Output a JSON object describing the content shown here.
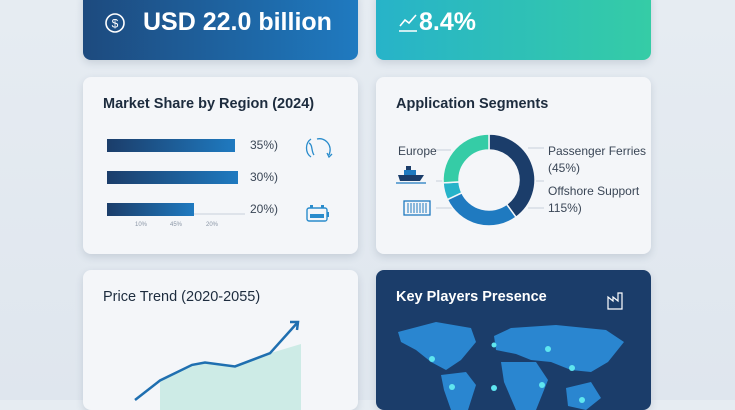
{
  "kpis": [
    {
      "value": "USD 22.0 billion",
      "icon": "dollar-circle-icon"
    },
    {
      "value": "8.4%",
      "icon": "trend-up-icon"
    }
  ],
  "colors": {
    "navy": "#1b3d6a",
    "blue": "#1f7ac0",
    "teal": "#27b3c9",
    "green": "#35cca6",
    "light_teal": "#cdebe6"
  },
  "chart_data": [
    {
      "type": "bar",
      "title": "Market Share by Region (2024)",
      "orientation": "horizontal",
      "values": [
        35,
        30,
        20
      ],
      "data_labels": [
        "35%)",
        "30%)",
        "20%)"
      ],
      "tick_labels": [
        "10%",
        "45%",
        "20%"
      ],
      "icons": [
        "globe-icon",
        "battery-icon"
      ]
    },
    {
      "type": "pie",
      "title": "Application Segments",
      "donut": true,
      "slices": [
        {
          "value": 40,
          "color": "#1b3d6a"
        },
        {
          "value": 28,
          "color": "#1f7ac0"
        },
        {
          "value": 6,
          "color": "#27b3c9"
        },
        {
          "value": 26,
          "color": "#35cca6"
        }
      ],
      "labels": {
        "left": "Europe",
        "right1": "Passenger Ferries",
        "right1_value": "(45%)",
        "right2": "Offshore Support",
        "right2_value": "115%)"
      },
      "icons": [
        "ship-icon",
        "container-icon"
      ]
    },
    {
      "type": "area",
      "title": "Price Trend (2020-2055)",
      "values": [
        0,
        25,
        45,
        48,
        43,
        60,
        100
      ],
      "trend": "up"
    },
    {
      "type": "map",
      "title": "Key Players Presence",
      "icon": "factory-icon",
      "markers": 8
    }
  ]
}
